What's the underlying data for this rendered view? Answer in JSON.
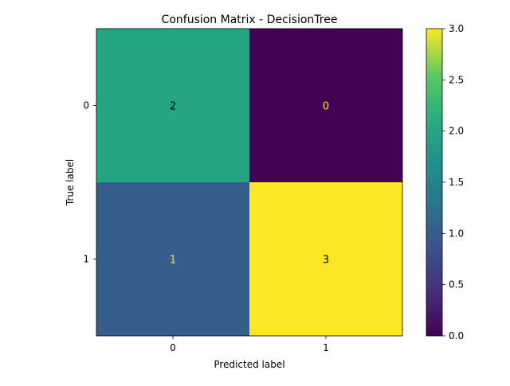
{
  "chart_data": {
    "type": "heatmap",
    "title": "Confusion Matrix - DecisionTree",
    "xlabel": "Predicted label",
    "ylabel": "True label",
    "x_categories": [
      "0",
      "1"
    ],
    "y_categories": [
      "0",
      "1"
    ],
    "values": [
      [
        2,
        0
      ],
      [
        1,
        3
      ]
    ],
    "colormap": "viridis",
    "colorbar": {
      "range": [
        0.0,
        3.0
      ],
      "ticks": [
        "0.0",
        "0.5",
        "1.0",
        "1.5",
        "2.0",
        "2.5",
        "3.0"
      ]
    },
    "colors": {
      "vmin": "#440154",
      "vmid_1": "#31688e",
      "vmid_2": "#35b779",
      "vmax": "#fde725",
      "text_dark": "#000000",
      "text_light": "#fde725"
    }
  }
}
